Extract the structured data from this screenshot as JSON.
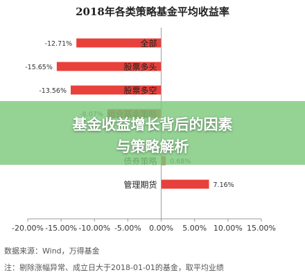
{
  "chart_data": {
    "type": "bar",
    "orientation": "horizontal",
    "title": "2018年各类策略基金平均收益率",
    "categories": [
      "全部",
      "股票多头",
      "股票多空",
      "组合基金策略",
      "",
      "债券策略",
      "管理期货"
    ],
    "values": [
      -12.71,
      -15.65,
      -13.56,
      -8.07,
      null,
      0.68,
      7.16
    ],
    "value_labels": [
      "-12.71%",
      "-15.65%",
      "-13.56%",
      "-8.07%",
      "",
      "0.68%",
      "7.16%"
    ],
    "xlim": [
      -20,
      15
    ],
    "x_ticks": [
      "-20.00%",
      "-15.00%",
      "-10.00%",
      "-5.00%",
      "0.00%",
      "5.00%",
      "10.00%",
      "15.00%"
    ],
    "bar_color": "#e8403b",
    "grid": false,
    "legend": "none"
  },
  "overlay": {
    "line1": "基金收益增长背后的因素",
    "line2": "与策略解析"
  },
  "notes": {
    "source": "数据来源：Wind，万得基金",
    "footnote": "注：剔除涨幅异常、成立日大于2018-01-01的基金，取平均业绩"
  }
}
